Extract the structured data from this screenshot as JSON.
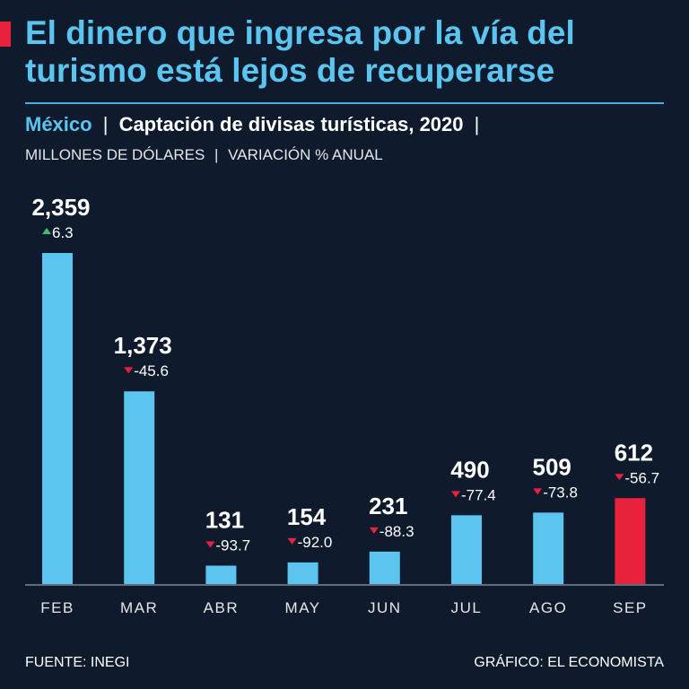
{
  "header": {
    "title": "El dinero que ingresa por la vía del turismo está lejos de recuperarse",
    "country": "México",
    "subtitle": "Captación de divisas turísticas, 2020",
    "separator": "|",
    "units": "MILLONES DE DÓLARES",
    "measure": "VARIACIÓN % ANUAL"
  },
  "colors": {
    "background": "#0f1b2d",
    "bar": "#5bc4ef",
    "highlight": "#e8213d",
    "up": "#3fbf6f",
    "down": "#e8213d"
  },
  "chart_data": {
    "type": "bar",
    "title": "Captación de divisas turísticas, 2020",
    "xlabel": "",
    "ylabel": "Millones de dólares",
    "ylim": [
      0,
      2400
    ],
    "grid": false,
    "categories": [
      "FEB",
      "MAR",
      "ABR",
      "MAY",
      "JUN",
      "JUL",
      "AGO",
      "SEP"
    ],
    "values": [
      2359,
      1373,
      131,
      154,
      231,
      490,
      509,
      612
    ],
    "value_labels": [
      "2,359",
      "1,373",
      "131",
      "154",
      "231",
      "490",
      "509",
      "612"
    ],
    "changes": [
      6.3,
      -45.6,
      -93.7,
      -92.0,
      -88.3,
      -77.4,
      -73.8,
      -56.7
    ],
    "change_labels": [
      "6.3",
      "-45.6",
      "-93.7",
      "-92.0",
      "-88.3",
      "-77.4",
      "-73.8",
      "-56.7"
    ],
    "highlight_index": 7
  },
  "footer": {
    "source": "FUENTE: INEGI",
    "credit": "GRÁFICO: EL ECONOMISTA"
  }
}
